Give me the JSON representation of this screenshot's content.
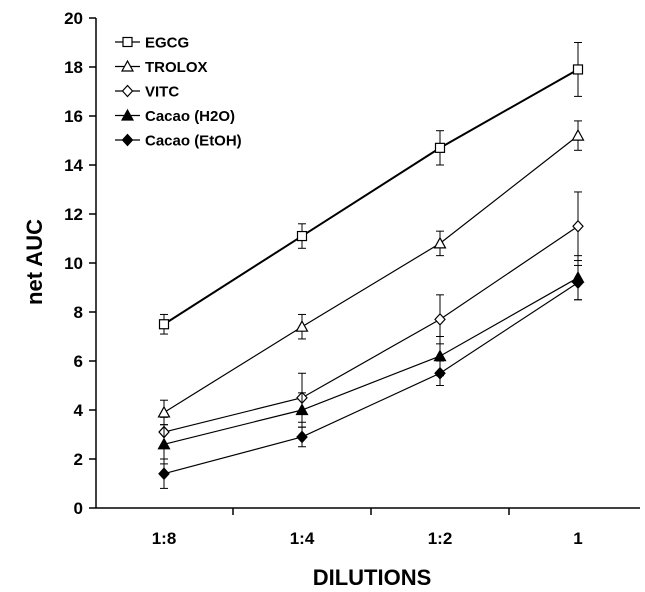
{
  "chart_data": {
    "type": "line",
    "title": "",
    "xlabel": "DILUTIONS",
    "ylabel": "net AUC",
    "categories": [
      "1:8",
      "1:4",
      "1:2",
      "1"
    ],
    "ylim": [
      0,
      20
    ],
    "yticks": [
      0,
      2,
      4,
      6,
      8,
      10,
      12,
      14,
      16,
      18,
      20
    ],
    "grid": false,
    "legend_position": "top-left",
    "series": [
      {
        "name": "EGCG",
        "marker": "square-open",
        "values": [
          7.5,
          11.1,
          14.7,
          17.9
        ],
        "errors": [
          0.4,
          0.5,
          0.7,
          1.1
        ]
      },
      {
        "name": "TROLOX",
        "marker": "triangle-open",
        "values": [
          3.9,
          7.4,
          10.8,
          15.2
        ],
        "errors": [
          0.5,
          0.5,
          0.5,
          0.6
        ]
      },
      {
        "name": "VITC",
        "marker": "diamond-open",
        "values": [
          3.1,
          4.5,
          7.7,
          11.5
        ],
        "errors": [
          0.6,
          1.0,
          1.0,
          1.4
        ]
      },
      {
        "name": "Cacao (H2O)",
        "marker": "triangle-filled",
        "values": [
          2.6,
          4.0,
          6.2,
          9.4
        ],
        "errors": [
          0.8,
          0.7,
          0.8,
          0.9
        ]
      },
      {
        "name": "Cacao (EtOH)",
        "marker": "diamond-filled",
        "values": [
          1.4,
          2.9,
          5.5,
          9.2
        ],
        "errors": [
          0.6,
          0.4,
          0.5,
          0.7
        ]
      }
    ]
  }
}
